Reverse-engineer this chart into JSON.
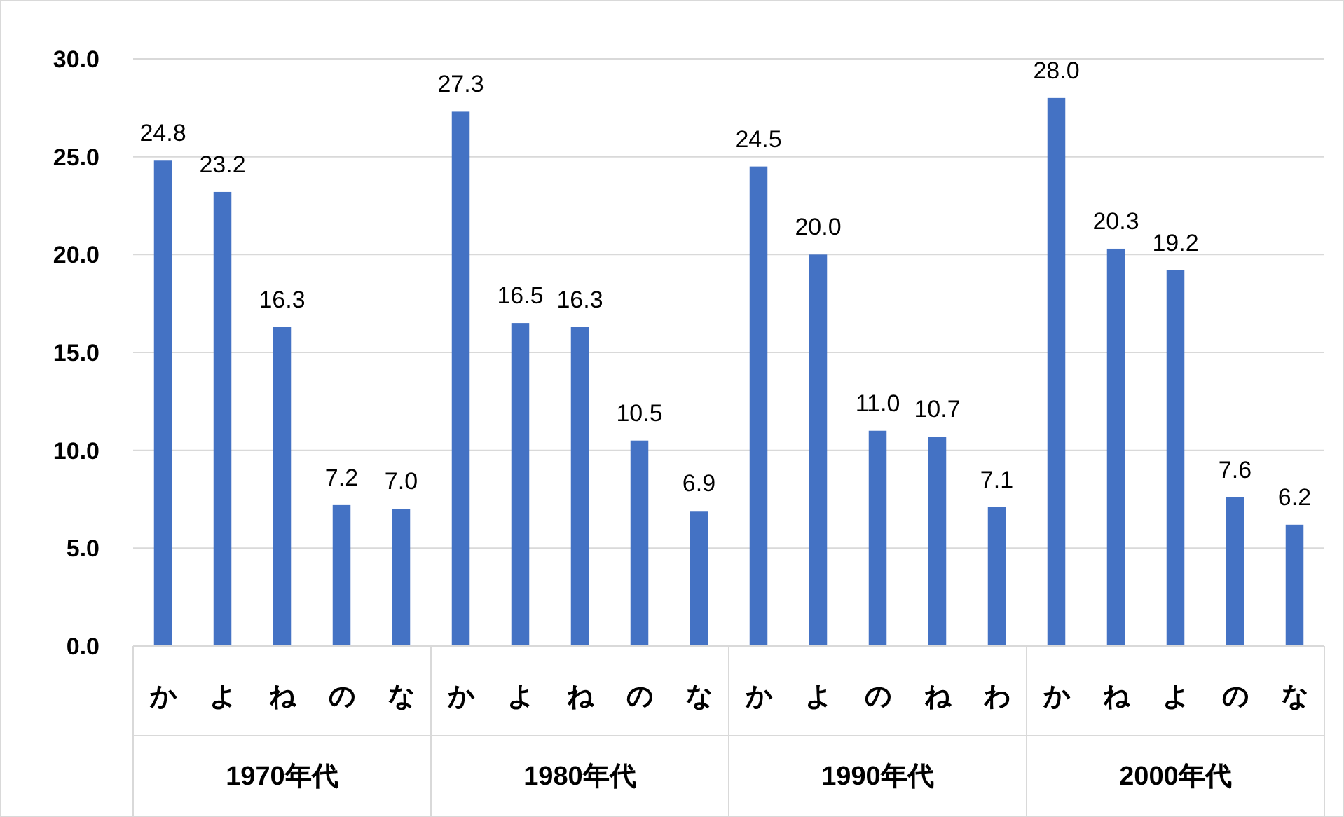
{
  "chart_data": {
    "type": "bar",
    "categories": [
      "か",
      "よ",
      "ね",
      "の",
      "な",
      "か",
      "よ",
      "ね",
      "の",
      "な",
      "か",
      "よ",
      "の",
      "ね",
      "わ",
      "か",
      "ね",
      "よ",
      "の",
      "な"
    ],
    "values": [
      24.8,
      23.2,
      16.3,
      7.2,
      7.0,
      27.3,
      16.5,
      16.3,
      10.5,
      6.9,
      24.5,
      20.0,
      11.0,
      10.7,
      7.1,
      28.0,
      20.3,
      19.2,
      7.6,
      6.2
    ],
    "value_labels": [
      "24.8",
      "23.2",
      "16.3",
      "7.2",
      "7.0",
      "27.3",
      "16.5",
      "16.3",
      "10.5",
      "6.9",
      "24.5",
      "20.0",
      "11.0",
      "10.7",
      "7.1",
      "28.0",
      "20.3",
      "19.2",
      "7.6",
      "6.2"
    ],
    "color": "#4472c4",
    "ylim": [
      0,
      30
    ],
    "yticks": [
      {
        "value": 0,
        "label": "0.0"
      },
      {
        "value": 5,
        "label": "5.0"
      },
      {
        "value": 10,
        "label": "10.0"
      },
      {
        "value": 15,
        "label": "15.0"
      },
      {
        "value": 20,
        "label": "20.0"
      },
      {
        "value": 25,
        "label": "25.0"
      },
      {
        "value": 30,
        "label": "30.0"
      }
    ],
    "grid": "y",
    "annotations": [
      "1970年代",
      "1980年代",
      "1990年代",
      "2000年代"
    ]
  }
}
